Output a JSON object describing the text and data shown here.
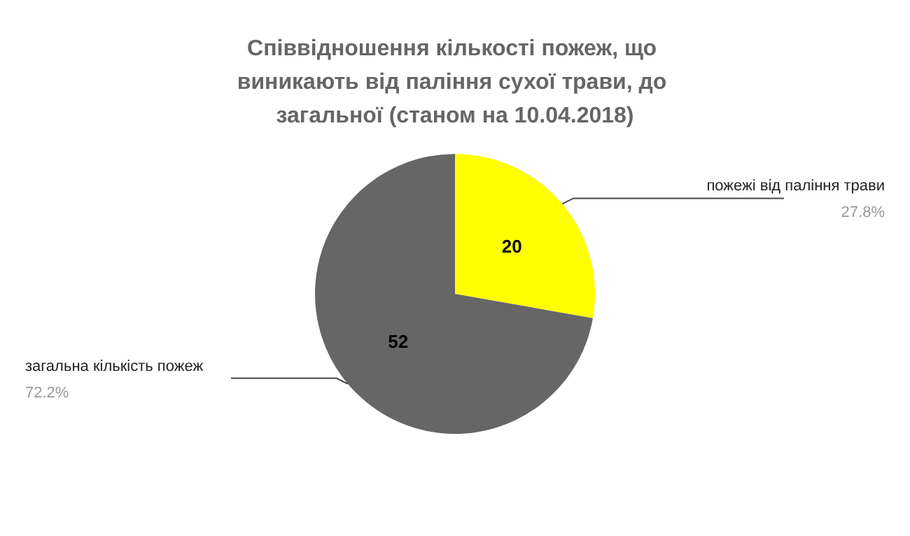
{
  "chart_data": {
    "type": "pie",
    "title": "Співвідношення кількості пожеж, що виникають від паління сухої трави, до загальної (станом на 10.04.2018)",
    "categories": [
      "пожежі від паління трави",
      "загальна кількість пожеж"
    ],
    "values": [
      20,
      52
    ],
    "colors": [
      "#ffff00",
      "#666666"
    ],
    "data_labels": true,
    "annotations": [
      "27.8%",
      "72.2%"
    ],
    "legend": false
  }
}
